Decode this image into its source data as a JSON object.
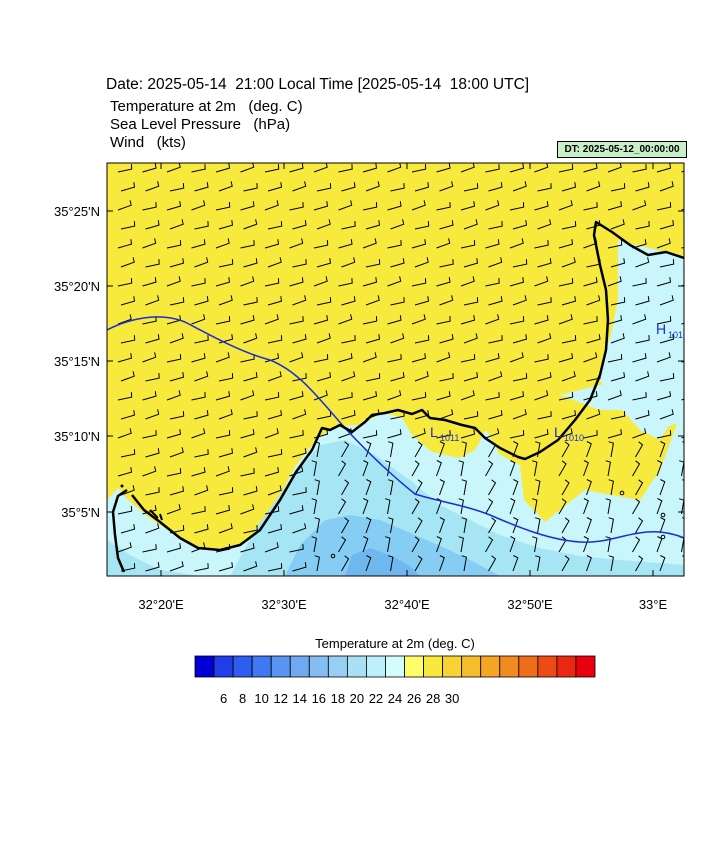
{
  "header": {
    "date_line": "Date: 2025-05-14  21:00 Local Time [2025-05-14  18:00 UTC]",
    "fields": [
      "Temperature at 2m   (deg. C)",
      "Sea Level Pressure   (hPa)",
      "Wind   (kts)"
    ],
    "dt_badge": "DT: 2025-05-12_00:00:00"
  },
  "map": {
    "lat_labels": [
      "35°25'N",
      "35°20'N",
      "35°15'N",
      "35°10'N",
      "35°5'N"
    ],
    "lon_labels": [
      "32°20'E",
      "32°30'E",
      "32°40'E",
      "32°50'E",
      "33°E"
    ],
    "pressure_labels": [
      {
        "letter": "L",
        "value": "1011"
      },
      {
        "letter": "L",
        "value": "1010"
      },
      {
        "letter": "H",
        "value": "101"
      }
    ],
    "colors": {
      "land_warm": "#f8ea3c",
      "sea_cool": "#c8f6fb",
      "sea_mid": "#a6e6f4",
      "sea_cold": "#86cdf3",
      "sea_coldest": "#6fb8ef",
      "coastline": "#000000",
      "isobar": "#1a2ed8",
      "wind_barb": "#000000"
    }
  },
  "colorbar": {
    "title": "Temperature at 2m  (deg. C)",
    "labels": [
      "6",
      "8",
      "10",
      "12",
      "14",
      "16",
      "18",
      "20",
      "22",
      "24",
      "26",
      "28",
      "30"
    ],
    "colors": [
      "#0000d6",
      "#1f3de8",
      "#2f5cf0",
      "#3f78f2",
      "#5a93f2",
      "#6fa9f1",
      "#83bdf1",
      "#96cff3",
      "#a9e0f6",
      "#bdeefa",
      "#d4fbfd",
      "#fffe6a",
      "#fbe83c",
      "#f9d333",
      "#f7bc2b",
      "#f5a524",
      "#f28a1f",
      "#ef6c1a",
      "#ec4b16",
      "#e82812",
      "#e8000e"
    ]
  }
}
